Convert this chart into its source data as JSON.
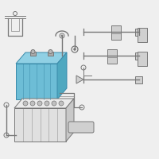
{
  "bg_color": "#efefef",
  "highlight_color": "#6dbdd6",
  "highlight_top": "#90d0e4",
  "highlight_right": "#4fa8c0",
  "highlight_edge": "#3a8aaa",
  "part_color": "#d0d0d0",
  "part_edge": "#888888",
  "line_color": "#999999",
  "dark_edge": "#777777",
  "white_bg": "#f8f8f8"
}
